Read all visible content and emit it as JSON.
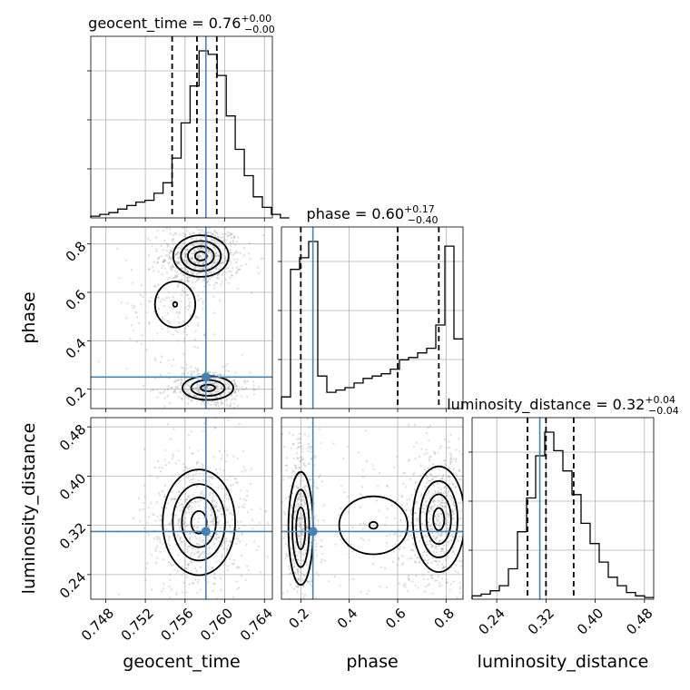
{
  "chart_data": {
    "type": "corner",
    "parameters": [
      "geocent_time",
      "phase",
      "luminosity_distance"
    ],
    "truths": {
      "geocent_time": 0.7581,
      "phase": 0.25,
      "luminosity_distance": 0.31
    },
    "truth_color": "#4682b4",
    "grid": true,
    "ranges": {
      "geocent_time": [
        0.7465,
        0.7648
      ],
      "phase": [
        0.12,
        0.87
      ],
      "luminosity_distance": [
        0.2,
        0.495
      ]
    },
    "ticks": {
      "geocent_time": [
        "0.748",
        "0.752",
        "0.756",
        "0.760",
        "0.764"
      ],
      "phase": [
        "0.2",
        "0.4",
        "0.6",
        "0.8"
      ],
      "luminosity_distance": [
        "0.24",
        "0.32",
        "0.40",
        "0.48"
      ]
    },
    "titles": {
      "geocent_time": {
        "text": "geocent_time = 0.76",
        "sup": "+0.00",
        "sub": "−0.00"
      },
      "phase": {
        "text": "phase = 0.60",
        "sup": "+0.17",
        "sub": "−0.40"
      },
      "luminosity_distance": {
        "text": "luminosity_distance = 0.32",
        "sup": "+0.04",
        "sub": "−0.04"
      }
    },
    "quantiles": {
      "geocent_time": [
        0.7547,
        0.7572,
        0.7592
      ],
      "phase": [
        0.2,
        0.6,
        0.77
      ],
      "luminosity_distance": [
        0.29,
        0.32,
        0.365
      ]
    },
    "histograms": {
      "geocent_time": {
        "edges_start": 0.7465,
        "bin_width": 0.00091,
        "counts": [
          1,
          2,
          3,
          5,
          7,
          9,
          10,
          14,
          20,
          34,
          54,
          75,
          95,
          93,
          81,
          58,
          39,
          24,
          12,
          6,
          2,
          0
        ]
      },
      "phase": {
        "edges_start": 0.12,
        "bin_width": 0.0375,
        "counts": [
          5,
          60,
          65,
          72,
          14,
          7,
          8,
          9,
          11,
          13,
          14,
          15,
          17,
          21,
          22,
          24,
          26,
          36,
          70,
          30
        ]
      },
      "luminosity_distance": {
        "edges_start": 0.2,
        "bin_width": 0.01475,
        "counts": [
          2,
          3,
          5,
          8,
          18,
          40,
          60,
          85,
          99,
          88,
          76,
          62,
          45,
          33,
          22,
          13,
          8,
          4,
          2,
          1
        ]
      }
    },
    "density_modes": {
      "phase_vs_geocent_time": [
        {
          "x": 0.7576,
          "y": 0.75,
          "sx": 0.0013,
          "sy": 0.04,
          "w": 1.0
        },
        {
          "x": 0.7583,
          "y": 0.205,
          "sx": 0.0013,
          "sy": 0.025,
          "w": 0.7
        },
        {
          "x": 0.755,
          "y": 0.55,
          "sx": 0.0015,
          "sy": 0.07,
          "w": 0.25
        }
      ],
      "luminosity_distance_vs_geocent_time": [
        {
          "x": 0.7574,
          "y": 0.325,
          "sx": 0.0017,
          "sy": 0.04,
          "w": 1.0
        }
      ],
      "luminosity_distance_vs_phase": [
        {
          "x": 0.77,
          "y": 0.33,
          "sx": 0.05,
          "sy": 0.04,
          "w": 1.0
        },
        {
          "x": 0.2,
          "y": 0.315,
          "sx": 0.025,
          "sy": 0.045,
          "w": 0.8
        },
        {
          "x": 0.5,
          "y": 0.32,
          "sx": 0.12,
          "sy": 0.04,
          "w": 0.2
        }
      ]
    }
  }
}
